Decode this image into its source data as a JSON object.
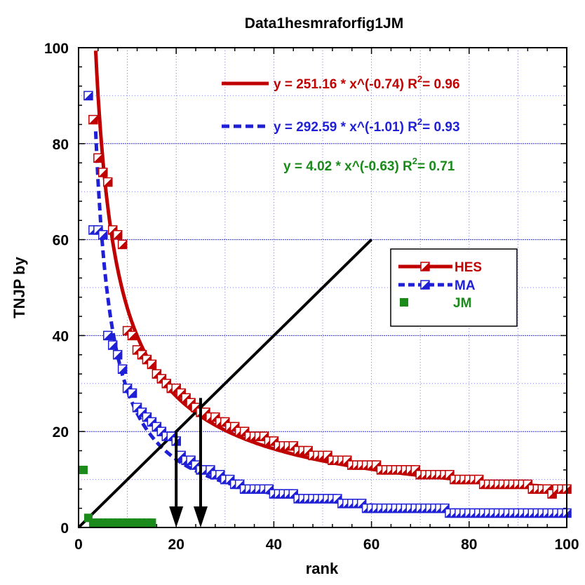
{
  "chart_data": {
    "type": "scatter",
    "title": "Data1hesmraforfig1JM",
    "xlabel": "rank",
    "ylabel": "TNJP  by",
    "xlim": [
      0,
      100
    ],
    "ylim": [
      0,
      100
    ],
    "xticks": [
      0,
      20,
      40,
      60,
      80,
      100
    ],
    "yticks": [
      0,
      20,
      40,
      60,
      80,
      100
    ],
    "grid": true,
    "legend_position": "right",
    "series": [
      {
        "name": "HES",
        "color": "#c00000",
        "marker": "half-filled-square",
        "fit": {
          "a": 251.16,
          "b": -0.74,
          "r2": "0.96",
          "label": "y = 251.16 * x^(-0.74)   R",
          "r2_label": "= 0.96",
          "style": "solid"
        },
        "values": [
          [
            3,
            85
          ],
          [
            4,
            77
          ],
          [
            5,
            74
          ],
          [
            6,
            72
          ],
          [
            7,
            62
          ],
          [
            8,
            61
          ],
          [
            9,
            59
          ],
          [
            10,
            41
          ],
          [
            11,
            40
          ],
          [
            12,
            37
          ],
          [
            13,
            36
          ],
          [
            14,
            35
          ],
          [
            15,
            34
          ],
          [
            16,
            32
          ],
          [
            17,
            31
          ],
          [
            18,
            30
          ],
          [
            19,
            29
          ],
          [
            20,
            29
          ],
          [
            21,
            28
          ],
          [
            22,
            27
          ],
          [
            23,
            26
          ],
          [
            24,
            25
          ],
          [
            25,
            24
          ],
          [
            26,
            24
          ],
          [
            27,
            23
          ],
          [
            28,
            23
          ],
          [
            29,
            22
          ],
          [
            30,
            22
          ],
          [
            31,
            21
          ],
          [
            32,
            21
          ],
          [
            33,
            20
          ],
          [
            34,
            20
          ],
          [
            35,
            19
          ],
          [
            36,
            19
          ],
          [
            37,
            19
          ],
          [
            38,
            19
          ],
          [
            39,
            18
          ],
          [
            40,
            18
          ],
          [
            41,
            17
          ],
          [
            42,
            17
          ],
          [
            43,
            17
          ],
          [
            44,
            17
          ],
          [
            45,
            16
          ],
          [
            46,
            16
          ],
          [
            47,
            16
          ],
          [
            48,
            15
          ],
          [
            49,
            15
          ],
          [
            50,
            15
          ],
          [
            51,
            15
          ],
          [
            52,
            14
          ],
          [
            53,
            14
          ],
          [
            54,
            14
          ],
          [
            55,
            14
          ],
          [
            56,
            13
          ],
          [
            57,
            13
          ],
          [
            58,
            13
          ],
          [
            59,
            13
          ],
          [
            60,
            13
          ],
          [
            61,
            13
          ],
          [
            62,
            12
          ],
          [
            63,
            12
          ],
          [
            64,
            12
          ],
          [
            65,
            12
          ],
          [
            66,
            12
          ],
          [
            67,
            12
          ],
          [
            68,
            12
          ],
          [
            69,
            12
          ],
          [
            70,
            11
          ],
          [
            71,
            11
          ],
          [
            72,
            11
          ],
          [
            73,
            11
          ],
          [
            74,
            11
          ],
          [
            75,
            11
          ],
          [
            76,
            11
          ],
          [
            77,
            10
          ],
          [
            78,
            10
          ],
          [
            79,
            10
          ],
          [
            80,
            10
          ],
          [
            81,
            10
          ],
          [
            82,
            10
          ],
          [
            83,
            9
          ],
          [
            84,
            9
          ],
          [
            85,
            9
          ],
          [
            86,
            9
          ],
          [
            87,
            9
          ],
          [
            88,
            9
          ],
          [
            89,
            9
          ],
          [
            90,
            9
          ],
          [
            91,
            9
          ],
          [
            92,
            9
          ],
          [
            93,
            8
          ],
          [
            94,
            8
          ],
          [
            95,
            8
          ],
          [
            96,
            8
          ],
          [
            97,
            7
          ],
          [
            98,
            8
          ],
          [
            99,
            8
          ],
          [
            100,
            8
          ]
        ]
      },
      {
        "name": "MA",
        "color": "#1f1fd6",
        "marker": "half-filled-square",
        "fit": {
          "a": 292.59,
          "b": -1.01,
          "r2": "0.93",
          "label": "y = 292.59 * x^(-1.01)   R",
          "r2_label": "= 0.93",
          "style": "dashed"
        },
        "values": [
          [
            2,
            90
          ],
          [
            3,
            62
          ],
          [
            4,
            62
          ],
          [
            5,
            61
          ],
          [
            6,
            40
          ],
          [
            7,
            38
          ],
          [
            8,
            36
          ],
          [
            9,
            33
          ],
          [
            10,
            29
          ],
          [
            11,
            28
          ],
          [
            12,
            25
          ],
          [
            13,
            24
          ],
          [
            14,
            23
          ],
          [
            15,
            22
          ],
          [
            16,
            21
          ],
          [
            17,
            20
          ],
          [
            18,
            19
          ],
          [
            19,
            19
          ],
          [
            20,
            18
          ],
          [
            21,
            15
          ],
          [
            22,
            14
          ],
          [
            23,
            14
          ],
          [
            24,
            13
          ],
          [
            25,
            12
          ],
          [
            26,
            12
          ],
          [
            27,
            12
          ],
          [
            28,
            11
          ],
          [
            29,
            11
          ],
          [
            30,
            10
          ],
          [
            31,
            10
          ],
          [
            32,
            9
          ],
          [
            33,
            9
          ],
          [
            34,
            8
          ],
          [
            35,
            8
          ],
          [
            36,
            8
          ],
          [
            37,
            8
          ],
          [
            38,
            8
          ],
          [
            39,
            8
          ],
          [
            40,
            7
          ],
          [
            41,
            7
          ],
          [
            42,
            7
          ],
          [
            43,
            7
          ],
          [
            44,
            7
          ],
          [
            45,
            6
          ],
          [
            46,
            6
          ],
          [
            47,
            6
          ],
          [
            48,
            6
          ],
          [
            49,
            6
          ],
          [
            50,
            6
          ],
          [
            51,
            6
          ],
          [
            52,
            6
          ],
          [
            53,
            6
          ],
          [
            54,
            5
          ],
          [
            55,
            5
          ],
          [
            56,
            5
          ],
          [
            57,
            5
          ],
          [
            58,
            5
          ],
          [
            59,
            4
          ],
          [
            60,
            4
          ],
          [
            61,
            4
          ],
          [
            62,
            4
          ],
          [
            63,
            4
          ],
          [
            64,
            4
          ],
          [
            65,
            4
          ],
          [
            66,
            4
          ],
          [
            67,
            4
          ],
          [
            68,
            4
          ],
          [
            69,
            4
          ],
          [
            70,
            4
          ],
          [
            71,
            4
          ],
          [
            72,
            4
          ],
          [
            73,
            4
          ],
          [
            74,
            4
          ],
          [
            75,
            4
          ],
          [
            76,
            3
          ],
          [
            77,
            3
          ],
          [
            78,
            3
          ],
          [
            79,
            3
          ],
          [
            80,
            3
          ],
          [
            81,
            3
          ],
          [
            82,
            3
          ],
          [
            83,
            3
          ],
          [
            84,
            3
          ],
          [
            85,
            3
          ],
          [
            86,
            3
          ],
          [
            87,
            3
          ],
          [
            88,
            3
          ],
          [
            89,
            3
          ],
          [
            90,
            3
          ],
          [
            91,
            3
          ],
          [
            92,
            3
          ],
          [
            93,
            3
          ],
          [
            94,
            3
          ],
          [
            95,
            3
          ],
          [
            96,
            3
          ],
          [
            97,
            3
          ],
          [
            98,
            3
          ],
          [
            99,
            3
          ],
          [
            100,
            3
          ]
        ]
      },
      {
        "name": "JM",
        "color": "#1a8a1a",
        "marker": "filled-square",
        "fit": {
          "a": 4.02,
          "b": -0.63,
          "r2": "0.71",
          "label": "y = 4.02 * x^(-0.63)   R",
          "r2_label": "= 0.71",
          "style": "none"
        },
        "values": [
          [
            1,
            12
          ],
          [
            2,
            2
          ],
          [
            3,
            1
          ],
          [
            4,
            1
          ],
          [
            5,
            1
          ],
          [
            6,
            1
          ],
          [
            7,
            1
          ],
          [
            8,
            1
          ],
          [
            9,
            1
          ],
          [
            10,
            1
          ],
          [
            11,
            1
          ],
          [
            12,
            1
          ],
          [
            13,
            1
          ],
          [
            14,
            1
          ],
          [
            15,
            1
          ]
        ]
      }
    ],
    "reference_line": {
      "from": [
        0,
        0
      ],
      "to": [
        60,
        60
      ],
      "color": "#000000"
    },
    "arrows": [
      {
        "x": 20,
        "from_y": 20,
        "to_y": 0
      },
      {
        "x": 25,
        "from_y": 27,
        "to_y": 0
      }
    ],
    "fit_x_range": [
      3.5,
      100
    ]
  }
}
